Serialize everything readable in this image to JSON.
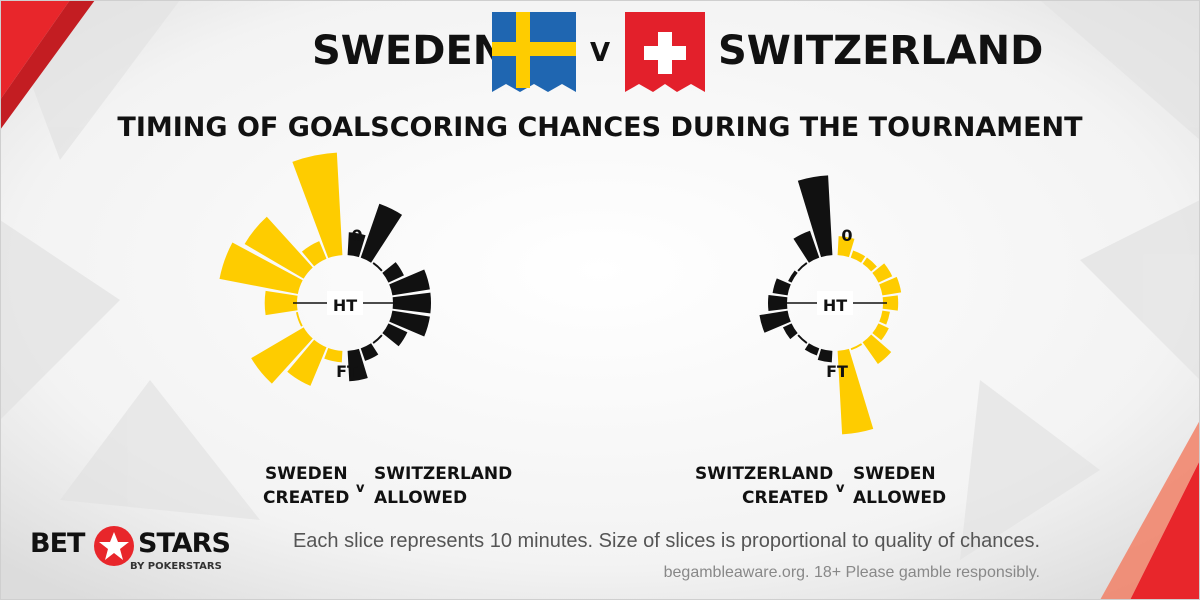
{
  "header": {
    "team_a": "SWEDEN",
    "vs": "V",
    "team_b": "SWITZERLAND",
    "subtitle": "TIMING OF GOALSCORING CHANCES DURING THE TOURNAMENT"
  },
  "flags": {
    "team_a": "sweden-flag-icon",
    "team_b": "switzerland-flag-icon"
  },
  "colors": {
    "yellow": "#fecc00",
    "black": "#111111",
    "accent_red": "#e8262b"
  },
  "chart_data": [
    {
      "type": "radial-bar",
      "markers": [
        "0",
        "HT",
        "FT"
      ],
      "left_series": {
        "name": "SWEDEN CREATED",
        "color": "#fecc00",
        "values": [
          0.3,
          1.1,
          1.6,
          0.05,
          0.85,
          2.1,
          1.8,
          0.5,
          2.7
        ]
      },
      "right_series": {
        "name": "SWITZERLAND ALLOWED",
        "color": "#111111",
        "values": [
          0.6,
          1.5,
          0.05,
          0.45,
          1.0,
          1.0,
          1.0,
          0.55,
          0.05,
          0.35,
          0.8
        ]
      },
      "labels": {
        "left_line1": "SWEDEN",
        "left_line2": "CREATED",
        "v": "v",
        "right_line1": "SWITZERLAND",
        "right_line2": "ALLOWED"
      }
    },
    {
      "type": "radial-bar",
      "markers": [
        "0",
        "HT",
        "FT"
      ],
      "left_series": {
        "name": "SWITZERLAND CREATED",
        "color": "#111111",
        "values": [
          0.3,
          0.2,
          0.05,
          0.25,
          0.75,
          0.5,
          0.4,
          0.1,
          0.05,
          0.75,
          2.1
        ]
      },
      "right_series": {
        "name": "SWEDEN ALLOWED",
        "color": "#fecc00",
        "values": [
          0.5,
          0.2,
          0.2,
          0.4,
          0.5,
          0.4,
          0.2,
          0.3,
          0.7,
          0.05,
          2.2
        ]
      },
      "labels": {
        "left_line1": "SWITZERLAND",
        "left_line2": "CREATED",
        "v": "v",
        "right_line1": "SWEDEN",
        "right_line2": "ALLOWED"
      }
    }
  ],
  "footer": {
    "caption": "Each slice represents 10 minutes. Size of slices is proportional to quality of chances.",
    "disclaimer": "begambleaware.org.  18+ Please gamble responsibly."
  },
  "logo": {
    "part1": "BET",
    "part2": "STARS",
    "sub": "BY POKERSTARS",
    "icon": "star-icon"
  }
}
